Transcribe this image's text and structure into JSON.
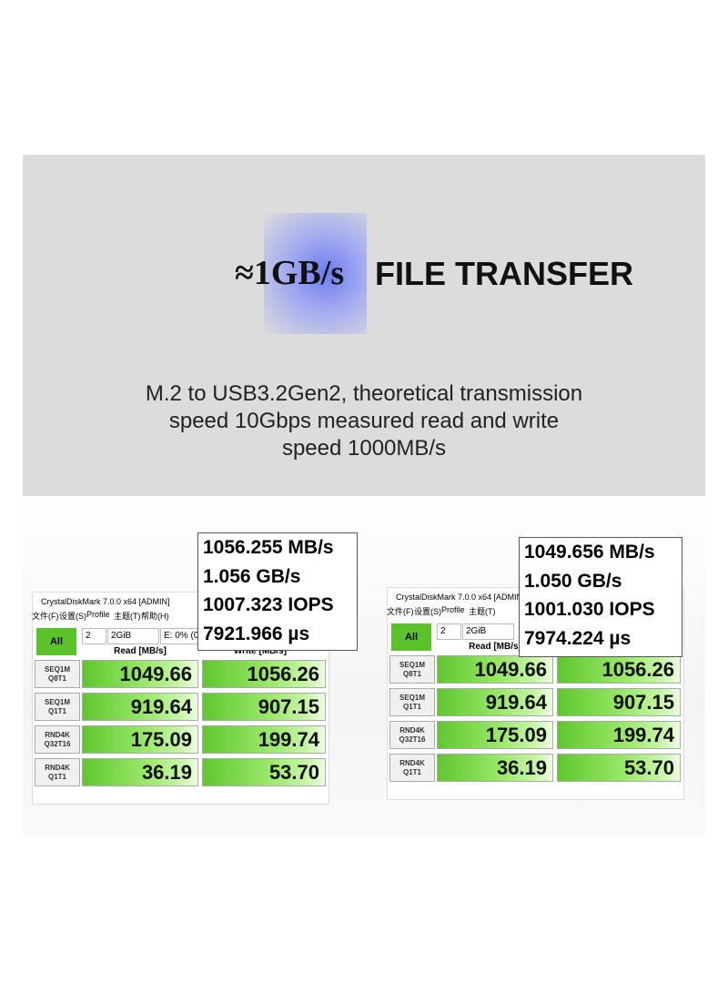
{
  "header": {
    "title_prefix": "≈1GB/s",
    "title": "FILE TRANSFER",
    "description": [
      "M.2 to USB3.2Gen2, theoretical transmission",
      "speed 10Gbps measured read and write",
      "speed 1000MB/s"
    ]
  },
  "screenshots": [
    {
      "window_title": "CrystalDiskMark 7.0.0 x64 [ADMIN]",
      "menu": [
        "文件(F)",
        "设置(S)",
        "Profile",
        "主题(T)",
        "帮助(H)"
      ],
      "button": "All",
      "controls": [
        "2",
        "2GiB",
        "E: 0% (0"
      ],
      "columns": [
        "Read [MB/s]",
        "Write [MB/s]"
      ],
      "rows": [
        {
          "label": [
            "SEQ1M",
            "Q8T1"
          ],
          "read": "1049.66",
          "write": "1056.26"
        },
        {
          "label": [
            "SEQ1M",
            "Q1T1"
          ],
          "read": "919.64",
          "write": "907.15"
        },
        {
          "label": [
            "RND4K",
            "Q32T16"
          ],
          "read": "175.09",
          "write": "199.74"
        },
        {
          "label": [
            "RND4K",
            "Q1T1"
          ],
          "read": "36.19",
          "write": "53.70"
        }
      ],
      "callout": [
        "1056.255 MB/s",
        "1.056 GB/s",
        "1007.323 IOPS",
        "7921.966 µs"
      ]
    },
    {
      "window_title": "CrystalDiskMark 7.0.0 x64 [ADMIN]",
      "menu": [
        "文件(F)",
        "设置(S)",
        "Profile",
        "主题(T)"
      ],
      "button": "All",
      "controls": [
        "2",
        "2GiB"
      ],
      "columns": [
        "Read [MB/s]"
      ],
      "rows": [
        {
          "label": [
            "SEQ1M",
            "Q8T1"
          ],
          "read": "1049.66",
          "write": "1056.26"
        },
        {
          "label": [
            "SEQ1M",
            "Q1T1"
          ],
          "read": "919.64",
          "write": "907.15"
        },
        {
          "label": [
            "RND4K",
            "Q32T16"
          ],
          "read": "175.09",
          "write": "199.74"
        },
        {
          "label": [
            "RND4K",
            "Q1T1"
          ],
          "read": "36.19",
          "write": "53.70"
        }
      ],
      "callout": [
        "1049.656 MB/s",
        "1.050 GB/s",
        "1001.030 IOPS",
        "7974.224 µs"
      ]
    }
  ]
}
